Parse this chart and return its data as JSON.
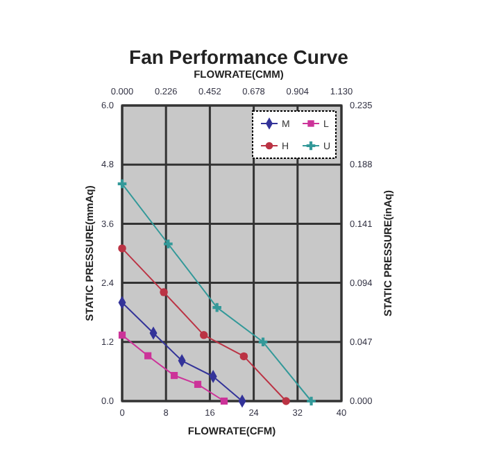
{
  "chart_data": {
    "type": "line",
    "title": "Fan Performance Curve",
    "x2label": "FLOWRATE(CMM)",
    "xlabel": "FLOWRATE(CFM)",
    "ylabel": "STATIC PRESSURE(mmAq)",
    "y2label": "STATIC PRESSURE(inAq)",
    "xlim": [
      0,
      40
    ],
    "xticks": [
      0,
      8,
      16,
      24,
      32,
      40
    ],
    "ylim": [
      0,
      6
    ],
    "yticks": [
      {
        "value": 0,
        "label": "0.0"
      },
      1.2,
      2.4,
      3.6,
      4.8,
      {
        "value": 6,
        "label": "6.0"
      }
    ],
    "x2lim": [
      0,
      1.13
    ],
    "x2ticks": [
      {
        "value": 0,
        "label": "0.000"
      },
      0.226,
      0.452,
      0.678,
      0.904,
      {
        "value": 1.13,
        "label": "1.130"
      }
    ],
    "y2lim": [
      0,
      0.235
    ],
    "y2ticks": [
      {
        "value": 0,
        "label": "0.000"
      },
      0.047,
      0.094,
      0.141,
      0.188,
      0.235
    ],
    "grid": true,
    "legend": "top right",
    "series": [
      {
        "name": "M",
        "color": "#333399",
        "marker": "diamond",
        "x": [
          0,
          5.7,
          10.9,
          16.6,
          21.9
        ],
        "values": [
          2.0,
          1.38,
          0.82,
          0.5,
          0
        ]
      },
      {
        "name": "L",
        "color": "#cc3399",
        "marker": "square",
        "x": [
          0,
          4.7,
          9.5,
          13.8,
          18.6
        ],
        "values": [
          1.34,
          0.92,
          0.52,
          0.34,
          0
        ]
      },
      {
        "name": "H",
        "color": "#bb3344",
        "marker": "circle",
        "x": [
          0,
          7.6,
          14.9,
          22.2,
          29.9
        ],
        "values": [
          3.1,
          2.21,
          1.34,
          0.91,
          0
        ]
      },
      {
        "name": "U",
        "color": "#339999",
        "marker": "cross",
        "x": [
          0,
          8.4,
          17.3,
          25.7,
          34.5
        ],
        "values": [
          4.41,
          3.19,
          1.9,
          1.2,
          0
        ]
      }
    ]
  }
}
